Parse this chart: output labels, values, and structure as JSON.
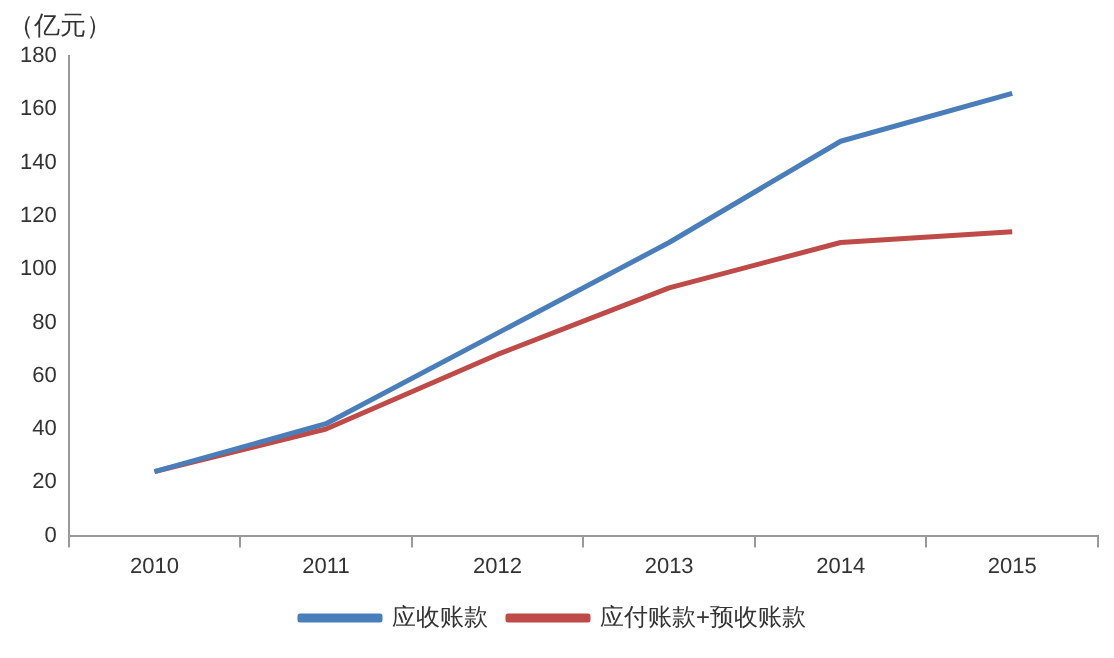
{
  "chart_data": {
    "type": "line",
    "ylabel": "（亿元）",
    "categories": [
      "2010",
      "2011",
      "2012",
      "2013",
      "2014",
      "2015"
    ],
    "series": [
      {
        "name": "应收账款",
        "color": "#4a7ebb",
        "values": [
          24,
          42,
          76,
          110,
          148,
          166
        ]
      },
      {
        "name": "应付账款+预收账款",
        "color": "#be4b48",
        "values": [
          24,
          40,
          68,
          93,
          110,
          114
        ]
      }
    ],
    "ylim": [
      0,
      180
    ],
    "yticks": [
      0,
      20,
      40,
      60,
      80,
      100,
      120,
      140,
      160,
      180
    ],
    "grid": false,
    "legend": "bottom",
    "marker": "none",
    "line_style": "solid"
  }
}
